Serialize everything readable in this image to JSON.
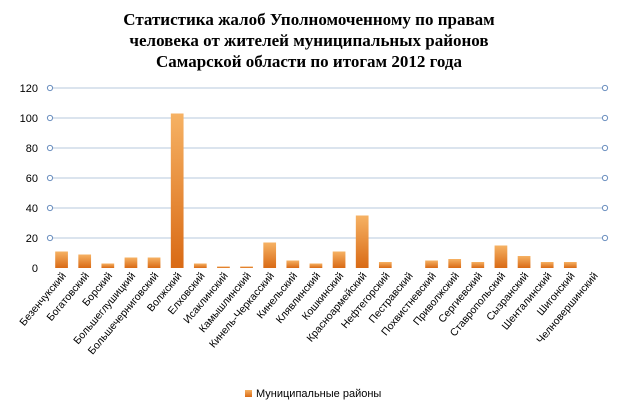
{
  "chart_data": {
    "type": "bar",
    "title_lines": [
      "Статистика жалоб Уполномоченному по правам",
      "человека от жителей муниципальных районов",
      "Самарской области по итогам 2012 года"
    ],
    "categories": [
      "Безенчукский",
      "Богатовский",
      "Борский",
      "Большеглушицкий",
      "Большечерниговский",
      "Волжский",
      "Елховский",
      "Исаклинский",
      "Камышлинский",
      "Кинель-Черкасский",
      "Кинельский",
      "Клявлинский",
      "Кошкинский",
      "Красноармейский",
      "Нефтегорский",
      "Пестравский",
      "Похвистневский",
      "Приволжский",
      "Сергиевский",
      "Ставропольский",
      "Сызранский",
      "Шенталинский",
      "Шигонский",
      "Челновершинский"
    ],
    "series": [
      {
        "name": "Муниципальные районы",
        "values": [
          11,
          9,
          3,
          7,
          7,
          103,
          3,
          1,
          1,
          17,
          5,
          3,
          11,
          35,
          4,
          0,
          5,
          6,
          4,
          15,
          8,
          4,
          4,
          0
        ]
      }
    ],
    "ylim": [
      0,
      120
    ],
    "yticks": [
      "0",
      "20",
      "40",
      "60",
      "80",
      "100",
      "120"
    ],
    "grid": true,
    "legend_position": "bottom",
    "colors": {
      "bar_top": "#f6b264",
      "bar_bottom": "#d96a15",
      "grid": "#b7c8dc",
      "grid_marker": "#6b8fbf"
    }
  }
}
